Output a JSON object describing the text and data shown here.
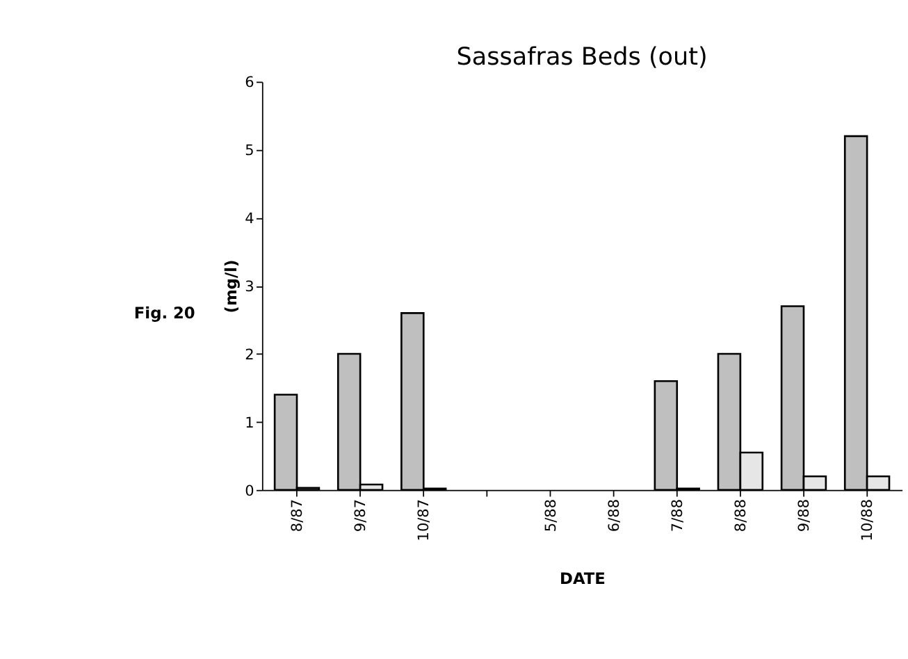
{
  "chart_data": {
    "type": "bar",
    "title": "Sassafras Beds (out)",
    "xlabel": "DATE",
    "ylabel": "(mg/l)",
    "categories": [
      "8/87",
      "9/87",
      "10/87",
      null,
      "5/88",
      "6/88",
      "7/88",
      "8/88",
      "9/88",
      "10/88"
    ],
    "series": [
      {
        "color": "#bfbfbf",
        "values": [
          1.4,
          2.0,
          2.6,
          null,
          null,
          null,
          1.6,
          2.0,
          2.7,
          5.2
        ]
      },
      {
        "color": "#e6e6e6",
        "values": [
          0.03,
          0.08,
          0.02,
          null,
          null,
          null,
          0.02,
          0.55,
          0.2,
          0.2
        ]
      }
    ],
    "ylim": [
      0,
      6
    ],
    "yticks": [
      0,
      1,
      2,
      3,
      4,
      5,
      6
    ],
    "grid": false,
    "legend": false,
    "annotations": [
      "Fig. 20"
    ]
  }
}
